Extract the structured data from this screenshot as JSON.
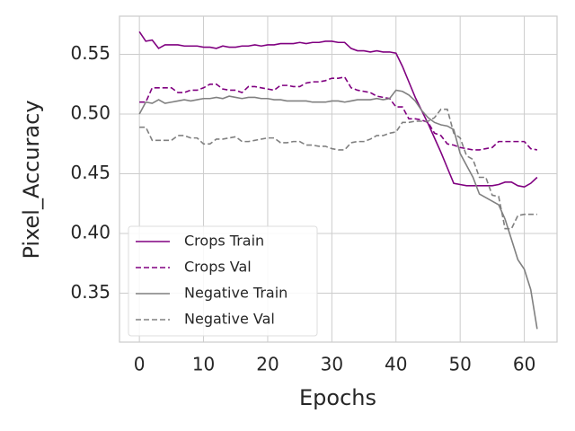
{
  "chart_data": {
    "type": "line",
    "x_label": "Epochs",
    "y_label": "Pixel_Accuracy",
    "x": [
      0,
      1,
      2,
      3,
      4,
      5,
      6,
      7,
      8,
      9,
      10,
      11,
      12,
      13,
      14,
      15,
      16,
      17,
      18,
      19,
      20,
      21,
      22,
      23,
      24,
      25,
      26,
      27,
      28,
      29,
      30,
      31,
      32,
      33,
      34,
      35,
      36,
      37,
      38,
      39,
      40,
      41,
      42,
      43,
      44,
      45,
      46,
      47,
      48,
      49,
      50,
      51,
      52,
      53,
      54,
      55,
      56,
      57,
      58,
      59,
      60,
      61,
      62
    ],
    "xlim": [
      -3.1,
      65.1
    ],
    "ylim": [
      0.309,
      0.582
    ],
    "xticks": [
      0,
      10,
      20,
      30,
      40,
      50,
      60
    ],
    "yticks": [
      0.35,
      {
        "value": 0.4,
        "label": "0.40"
      },
      0.45,
      {
        "value": 0.5,
        "label": "0.50"
      },
      0.55
    ],
    "grid": true,
    "legend_position": "lower left",
    "series": [
      {
        "name": "Crops Train",
        "color": "#800080",
        "dash": "solid",
        "values": [
          0.569,
          0.561,
          0.562,
          0.555,
          0.558,
          0.558,
          0.558,
          0.557,
          0.557,
          0.557,
          0.556,
          0.556,
          0.555,
          0.557,
          0.556,
          0.556,
          0.557,
          0.557,
          0.558,
          0.557,
          0.558,
          0.558,
          0.559,
          0.559,
          0.559,
          0.56,
          0.559,
          0.56,
          0.56,
          0.561,
          0.561,
          0.56,
          0.56,
          0.555,
          0.553,
          0.553,
          0.552,
          0.553,
          0.552,
          0.552,
          0.551,
          0.54,
          0.527,
          0.514,
          0.503,
          0.492,
          0.48,
          0.468,
          0.455,
          0.442,
          0.441,
          0.44,
          0.44,
          0.44,
          0.44,
          0.44,
          0.441,
          0.443,
          0.443,
          0.44,
          0.439,
          0.442,
          0.447
        ]
      },
      {
        "name": "Crops Val",
        "color": "#800080",
        "dash": "dashed",
        "values": [
          0.51,
          0.51,
          0.522,
          0.522,
          0.522,
          0.522,
          0.518,
          0.518,
          0.52,
          0.52,
          0.522,
          0.525,
          0.525,
          0.521,
          0.52,
          0.52,
          0.518,
          0.523,
          0.523,
          0.522,
          0.521,
          0.52,
          0.524,
          0.524,
          0.523,
          0.523,
          0.526,
          0.527,
          0.527,
          0.528,
          0.53,
          0.53,
          0.531,
          0.522,
          0.52,
          0.519,
          0.518,
          0.515,
          0.514,
          0.513,
          0.506,
          0.506,
          0.496,
          0.496,
          0.495,
          0.493,
          0.484,
          0.482,
          0.475,
          0.474,
          0.472,
          0.471,
          0.47,
          0.47,
          0.471,
          0.472,
          0.477,
          0.477,
          0.477,
          0.477,
          0.477,
          0.471,
          0.47
        ]
      },
      {
        "name": "Negative Train",
        "color": "#808080",
        "dash": "solid",
        "values": [
          0.5,
          0.51,
          0.509,
          0.512,
          0.509,
          0.51,
          0.511,
          0.512,
          0.511,
          0.512,
          0.513,
          0.513,
          0.514,
          0.513,
          0.515,
          0.514,
          0.513,
          0.514,
          0.514,
          0.513,
          0.513,
          0.512,
          0.512,
          0.511,
          0.511,
          0.511,
          0.511,
          0.51,
          0.51,
          0.51,
          0.511,
          0.511,
          0.51,
          0.511,
          0.512,
          0.512,
          0.512,
          0.513,
          0.512,
          0.513,
          0.52,
          0.519,
          0.516,
          0.511,
          0.503,
          0.497,
          0.493,
          0.491,
          0.49,
          0.487,
          0.467,
          0.457,
          0.447,
          0.433,
          0.43,
          0.427,
          0.424,
          0.412,
          0.395,
          0.378,
          0.37,
          0.353,
          0.32
        ]
      },
      {
        "name": "Negative Val",
        "color": "#808080",
        "dash": "dashed",
        "values": [
          0.489,
          0.489,
          0.478,
          0.478,
          0.478,
          0.478,
          0.482,
          0.482,
          0.48,
          0.48,
          0.475,
          0.475,
          0.479,
          0.479,
          0.48,
          0.481,
          0.477,
          0.477,
          0.478,
          0.479,
          0.48,
          0.48,
          0.476,
          0.476,
          0.477,
          0.477,
          0.474,
          0.474,
          0.473,
          0.473,
          0.471,
          0.47,
          0.47,
          0.476,
          0.477,
          0.477,
          0.479,
          0.482,
          0.482,
          0.484,
          0.485,
          0.493,
          0.493,
          0.494,
          0.494,
          0.494,
          0.497,
          0.504,
          0.504,
          0.484,
          0.48,
          0.465,
          0.462,
          0.447,
          0.447,
          0.432,
          0.431,
          0.404,
          0.404,
          0.415,
          0.416,
          0.416,
          0.416
        ]
      }
    ]
  }
}
